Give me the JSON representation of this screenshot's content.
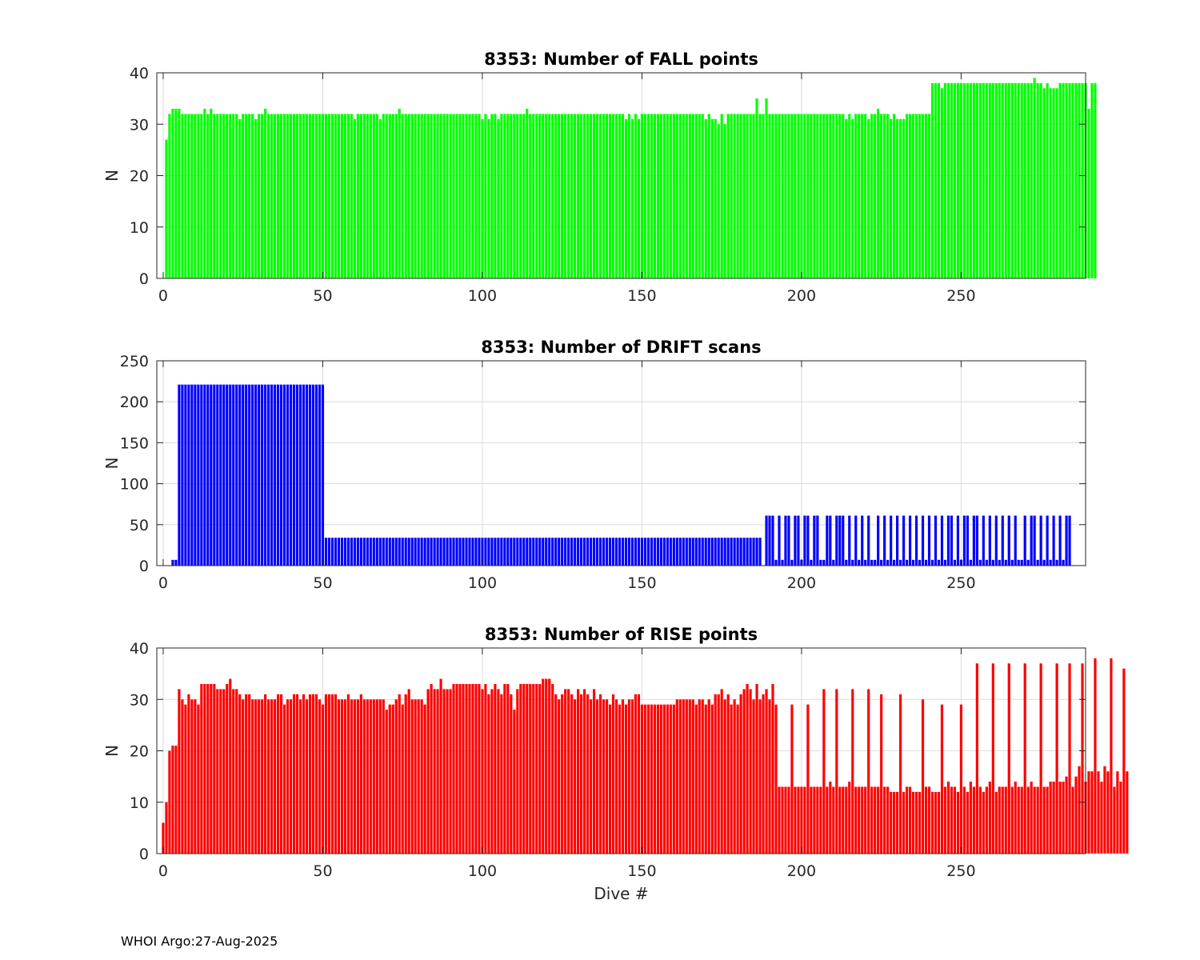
{
  "footer": "WHOI Argo:27-Aug-2025",
  "chart_data": [
    {
      "type": "bar",
      "title": "8353: Number of FALL points",
      "xlabel": "",
      "ylabel": "N",
      "color": "#00ff00",
      "xlim": [
        -2,
        289
      ],
      "ylim": [
        0,
        40
      ],
      "xticks": [
        0,
        50,
        100,
        150,
        200,
        250
      ],
      "yticks": [
        0,
        10,
        20,
        30,
        40
      ],
      "grid": true,
      "x_start": 1,
      "values": [
        27,
        32,
        33,
        33,
        33,
        32,
        32,
        32,
        32,
        32,
        32,
        32,
        33,
        32,
        33,
        32,
        32,
        32,
        32,
        32,
        32,
        32,
        32,
        31,
        32,
        32,
        32,
        32,
        31,
        32,
        32,
        33,
        32,
        32,
        32,
        32,
        32,
        32,
        32,
        32,
        32,
        32,
        32,
        32,
        32,
        32,
        32,
        32,
        32,
        32,
        32,
        32,
        32,
        32,
        32,
        32,
        32,
        32,
        32,
        31,
        32,
        32,
        32,
        32,
        32,
        32,
        32,
        31,
        32,
        32,
        32,
        32,
        32,
        33,
        32,
        32,
        32,
        32,
        32,
        32,
        32,
        32,
        32,
        32,
        32,
        32,
        32,
        32,
        32,
        32,
        32,
        32,
        32,
        32,
        32,
        32,
        32,
        32,
        32,
        31,
        32,
        31,
        32,
        32,
        31,
        32,
        32,
        32,
        32,
        32,
        32,
        32,
        32,
        33,
        32,
        32,
        32,
        32,
        32,
        32,
        32,
        32,
        32,
        32,
        32,
        32,
        32,
        32,
        32,
        32,
        32,
        32,
        32,
        32,
        32,
        32,
        32,
        32,
        32,
        32,
        32,
        32,
        32,
        32,
        31,
        32,
        31,
        32,
        31,
        32,
        32,
        32,
        32,
        32,
        32,
        32,
        32,
        32,
        32,
        32,
        32,
        32,
        32,
        32,
        32,
        32,
        32,
        32,
        32,
        31,
        32,
        31,
        31,
        30,
        32,
        30,
        32,
        32,
        32,
        32,
        32,
        32,
        32,
        32,
        32,
        35,
        32,
        32,
        35,
        32,
        32,
        32,
        32,
        32,
        32,
        32,
        32,
        32,
        32,
        32,
        32,
        32,
        32,
        32,
        32,
        32,
        32,
        32,
        32,
        32,
        32,
        32,
        32,
        31,
        32,
        31,
        32,
        32,
        32,
        32,
        31,
        32,
        32,
        33,
        32,
        32,
        32,
        31,
        32,
        31,
        31,
        31,
        32,
        32,
        32,
        32,
        32,
        32,
        32,
        32,
        38,
        38,
        38,
        37,
        38,
        38,
        38,
        38,
        38,
        38,
        38,
        38,
        38,
        38,
        38,
        38,
        38,
        38,
        38,
        38,
        38,
        38,
        38,
        38,
        38,
        38,
        38,
        38,
        38,
        38,
        38,
        38,
        39,
        38,
        38,
        37,
        38,
        37,
        37,
        37,
        38,
        38,
        38,
        38,
        38,
        38,
        38,
        38,
        38,
        33,
        38,
        38
      ]
    },
    {
      "type": "bar",
      "title": "8353: Number of DRIFT scans",
      "xlabel": "",
      "ylabel": "N",
      "color": "#0000ff",
      "xlim": [
        -2,
        289
      ],
      "ylim": [
        0,
        250
      ],
      "xticks": [
        0,
        50,
        100,
        150,
        200,
        250
      ],
      "yticks": [
        0,
        50,
        100,
        150,
        200,
        250
      ],
      "grid": true,
      "x_start": 1,
      "values": [
        0,
        0,
        7,
        7,
        221,
        221,
        221,
        221,
        221,
        221,
        221,
        221,
        221,
        221,
        221,
        221,
        221,
        221,
        221,
        221,
        221,
        221,
        221,
        221,
        221,
        221,
        221,
        221,
        221,
        221,
        221,
        221,
        221,
        221,
        221,
        221,
        221,
        221,
        221,
        221,
        221,
        221,
        221,
        221,
        221,
        221,
        221,
        221,
        221,
        221,
        34,
        34,
        34,
        34,
        34,
        34,
        34,
        34,
        34,
        34,
        34,
        34,
        34,
        34,
        34,
        34,
        34,
        34,
        34,
        34,
        34,
        34,
        34,
        34,
        34,
        34,
        34,
        34,
        34,
        34,
        34,
        34,
        34,
        34,
        34,
        34,
        34,
        34,
        34,
        34,
        34,
        34,
        34,
        34,
        34,
        34,
        34,
        34,
        34,
        34,
        34,
        34,
        34,
        34,
        34,
        34,
        34,
        34,
        34,
        34,
        34,
        34,
        34,
        34,
        34,
        34,
        34,
        34,
        34,
        34,
        34,
        34,
        34,
        34,
        34,
        34,
        34,
        34,
        34,
        34,
        34,
        34,
        34,
        34,
        34,
        34,
        34,
        34,
        34,
        34,
        34,
        34,
        34,
        34,
        34,
        34,
        34,
        34,
        34,
        34,
        34,
        34,
        34,
        34,
        34,
        34,
        34,
        34,
        34,
        34,
        34,
        34,
        34,
        34,
        34,
        34,
        34,
        34,
        34,
        34,
        34,
        34,
        34,
        34,
        34,
        34,
        34,
        34,
        34,
        34,
        34,
        34,
        34,
        34,
        34,
        34,
        34,
        0,
        61,
        61,
        61,
        7,
        61,
        7,
        61,
        61,
        7,
        61,
        61,
        7,
        61,
        61,
        7,
        61,
        61,
        7,
        7,
        61,
        61,
        7,
        61,
        61,
        61,
        7,
        61,
        7,
        61,
        7,
        61,
        7,
        61,
        7,
        7,
        61,
        7,
        61,
        7,
        61,
        7,
        61,
        7,
        61,
        7,
        61,
        7,
        61,
        7,
        61,
        7,
        61,
        7,
        61,
        7,
        61,
        7,
        61,
        61,
        7,
        61,
        7,
        61,
        61,
        7,
        61,
        61,
        7,
        61,
        7,
        61,
        7,
        61,
        7,
        61,
        7,
        61,
        7,
        61,
        7,
        7,
        61,
        7,
        61,
        61,
        7,
        61,
        7,
        61,
        7,
        61,
        7,
        61,
        7,
        61,
        61
      ]
    },
    {
      "type": "bar",
      "title": "8353: Number of RISE points",
      "xlabel": "Dive #",
      "ylabel": "N",
      "color": "#ff0000",
      "xlim": [
        -2,
        289
      ],
      "ylim": [
        0,
        40
      ],
      "xticks": [
        0,
        50,
        100,
        150,
        200,
        250
      ],
      "yticks": [
        0,
        10,
        20,
        30,
        40
      ],
      "grid": true,
      "x_start": 0,
      "values": [
        6,
        10,
        20,
        21,
        21,
        32,
        30,
        29,
        31,
        30,
        30,
        29,
        33,
        33,
        33,
        33,
        33,
        32,
        32,
        32,
        33,
        34,
        32,
        32,
        31,
        30,
        31,
        31,
        30,
        30,
        30,
        30,
        31,
        30,
        30,
        30,
        31,
        31,
        29,
        30,
        30,
        31,
        31,
        30,
        31,
        30,
        31,
        31,
        31,
        30,
        29,
        31,
        31,
        31,
        31,
        30,
        30,
        30,
        31,
        30,
        30,
        30,
        31,
        30,
        30,
        30,
        30,
        30,
        30,
        30,
        28,
        29,
        29,
        30,
        31,
        29,
        31,
        32,
        30,
        30,
        30,
        30,
        29,
        32,
        33,
        32,
        32,
        34,
        32,
        32,
        32,
        33,
        33,
        33,
        33,
        33,
        33,
        33,
        33,
        33,
        32,
        33,
        31,
        32,
        33,
        32,
        31,
        33,
        33,
        31,
        28,
        32,
        33,
        33,
        33,
        33,
        33,
        33,
        33,
        34,
        34,
        34,
        33,
        31,
        30,
        31,
        32,
        32,
        31,
        30,
        32,
        31,
        32,
        31,
        30,
        32,
        30,
        31,
        30,
        30,
        29,
        31,
        30,
        29,
        30,
        29,
        30,
        30,
        31,
        31,
        29,
        29,
        29,
        29,
        29,
        29,
        29,
        29,
        29,
        29,
        29,
        30,
        30,
        30,
        30,
        30,
        30,
        29,
        30,
        30,
        29,
        30,
        29,
        31,
        31,
        32,
        30,
        31,
        29,
        30,
        29,
        31,
        32,
        33,
        32,
        30,
        33,
        30,
        31,
        32,
        30,
        33,
        29,
        13,
        13,
        13,
        13,
        29,
        13,
        13,
        13,
        13,
        29,
        13,
        13,
        13,
        13,
        32,
        13,
        14,
        13,
        32,
        13,
        13,
        13,
        14,
        32,
        13,
        13,
        13,
        13,
        32,
        13,
        13,
        13,
        31,
        13,
        13,
        12,
        12,
        12,
        31,
        12,
        13,
        13,
        12,
        12,
        12,
        30,
        13,
        13,
        12,
        12,
        12,
        29,
        13,
        14,
        13,
        13,
        12,
        29,
        13,
        12,
        14,
        13,
        37,
        13,
        12,
        13,
        14,
        37,
        12,
        13,
        13,
        13,
        37,
        13,
        14,
        13,
        13,
        37,
        13,
        14,
        13,
        13,
        37,
        13,
        13,
        14,
        14,
        37,
        14,
        14,
        15,
        37,
        13,
        15,
        17,
        37,
        14,
        16,
        16,
        38,
        16,
        14,
        17,
        16,
        38,
        13,
        16,
        14,
        36,
        16
      ]
    }
  ]
}
